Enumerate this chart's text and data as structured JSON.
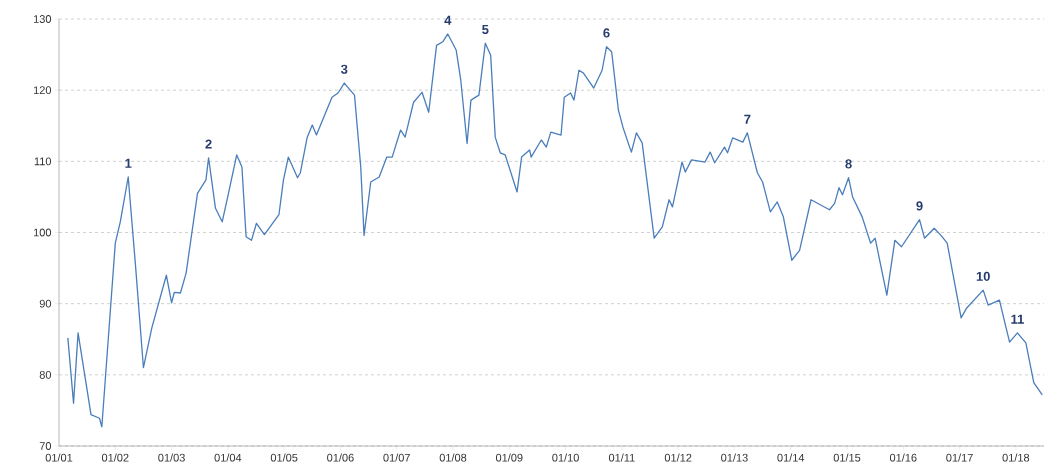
{
  "chart_data": {
    "type": "line",
    "color": "#4a7ebb",
    "line_style": "solid",
    "grid": "y",
    "xlim": [
      "2001-01-01",
      "2018-07-01"
    ],
    "ylim": [
      70,
      130
    ],
    "xticks": [
      {
        "value": "2001-01-01",
        "label": "01/01"
      },
      {
        "value": "2002-01-01",
        "label": "01/02"
      },
      {
        "value": "2003-01-01",
        "label": "01/03"
      },
      {
        "value": "2004-01-01",
        "label": "01/04"
      },
      {
        "value": "2005-01-01",
        "label": "01/05"
      },
      {
        "value": "2006-01-01",
        "label": "01/06"
      },
      {
        "value": "2007-01-01",
        "label": "01/07"
      },
      {
        "value": "2008-01-01",
        "label": "01/08"
      },
      {
        "value": "2009-01-01",
        "label": "01/09"
      },
      {
        "value": "2010-01-01",
        "label": "01/10"
      },
      {
        "value": "2011-01-01",
        "label": "01/11"
      },
      {
        "value": "2012-01-01",
        "label": "01/12"
      },
      {
        "value": "2013-01-01",
        "label": "01/13"
      },
      {
        "value": "2014-01-01",
        "label": "01/14"
      },
      {
        "value": "2015-01-01",
        "label": "01/15"
      },
      {
        "value": "2016-01-01",
        "label": "01/16"
      },
      {
        "value": "2017-01-01",
        "label": "01/17"
      },
      {
        "value": "2018-01-01",
        "label": "01/18"
      }
    ],
    "yticks": [
      70,
      80,
      90,
      100,
      110,
      120,
      130
    ],
    "x": [
      "2001-02-28",
      "2001-04-04",
      "2001-05-03",
      "2001-07-26",
      "2001-09-20",
      "2001-10-05",
      "2002-01-01",
      "2002-02-03",
      "2002-03-24",
      "2002-05-11",
      "2002-07-01",
      "2002-08-25",
      "2002-11-28",
      "2003-01-01",
      "2003-01-19",
      "2003-02-28",
      "2003-04-04",
      "2003-06-17",
      "2003-08-11",
      "2003-08-28",
      "2003-10-12",
      "2003-11-25",
      "2004-01-05",
      "2004-02-28",
      "2004-04-01",
      "2004-04-28",
      "2004-06-02",
      "2004-07-04",
      "2004-08-25",
      "2004-11-28",
      "2004-12-27",
      "2005-01-28",
      "2005-03-27",
      "2005-04-15",
      "2005-05-28",
      "2005-07-01",
      "2005-07-28",
      "2005-11-07",
      "2005-12-16",
      "2006-01-26",
      "2006-04-01",
      "2006-05-11",
      "2006-06-02",
      "2006-07-15",
      "2006-09-09",
      "2006-10-28",
      "2006-12-02",
      "2007-01-26",
      "2007-02-25",
      "2007-04-19",
      "2007-06-13",
      "2007-07-26",
      "2007-09-16",
      "2007-10-26",
      "2007-11-28",
      "2008-01-22",
      "2008-02-21",
      "2008-04-01",
      "2008-04-26",
      "2008-06-17",
      "2008-07-28",
      "2008-09-02",
      "2008-10-01",
      "2008-11-03",
      "2008-12-05",
      "2009-02-21",
      "2009-03-20",
      "2009-05-11",
      "2009-05-21",
      "2009-07-26",
      "2009-08-28",
      "2009-09-27",
      "2009-12-02",
      "2009-12-23",
      "2010-02-03",
      "2010-02-25",
      "2010-03-27",
      "2010-04-26",
      "2010-07-01",
      "2010-08-25",
      "2010-09-23",
      "2010-10-26",
      "2010-12-09",
      "2011-01-08",
      "2011-02-21",
      "2011-03-02",
      "2011-04-04",
      "2011-05-11",
      "2011-07-28",
      "2011-09-20",
      "2011-11-03",
      "2011-11-25",
      "2012-01-26",
      "2012-02-17",
      "2012-03-27",
      "2012-06-23",
      "2012-07-26",
      "2012-08-25",
      "2012-10-28",
      "2012-11-17",
      "2012-12-20",
      "2013-02-25",
      "2013-03-24",
      "2013-05-28",
      "2013-07-01",
      "2013-08-21",
      "2013-10-05",
      "2013-11-14",
      "2014-01-08",
      "2014-02-28",
      "2014-05-11",
      "2014-09-09",
      "2014-10-12",
      "2014-11-10",
      "2014-12-02",
      "2015-01-11",
      "2015-02-07",
      "2015-04-08",
      "2015-06-02",
      "2015-07-01",
      "2015-09-16",
      "2015-11-07",
      "2015-12-20",
      "2016-04-15",
      "2016-05-17",
      "2016-07-19",
      "2016-09-02",
      "2016-10-12",
      "2017-01-11",
      "2017-02-17",
      "2017-06-02",
      "2017-07-04",
      "2017-09-16",
      "2017-11-21",
      "2018-01-11",
      "2018-03-05",
      "2018-04-26",
      "2018-06-20"
    ],
    "values": [
      85.2,
      76.0,
      85.9,
      74.4,
      73.9,
      72.7,
      98.5,
      101.5,
      107.8,
      95.2,
      81.0,
      86.6,
      94.0,
      90.1,
      91.6,
      91.5,
      94.3,
      105.5,
      107.4,
      110.5,
      103.4,
      101.5,
      105.5,
      110.9,
      109.2,
      99.4,
      98.9,
      101.3,
      99.7,
      102.5,
      107.4,
      110.6,
      107.7,
      108.4,
      113.3,
      115.1,
      113.7,
      119.0,
      119.6,
      121.0,
      119.3,
      109.2,
      99.6,
      107.1,
      107.8,
      110.6,
      110.6,
      114.4,
      113.4,
      118.3,
      119.7,
      116.9,
      126.3,
      126.8,
      127.9,
      125.6,
      121.4,
      112.5,
      118.6,
      119.3,
      126.6,
      124.9,
      113.4,
      111.2,
      110.9,
      105.7,
      110.6,
      111.6,
      110.6,
      113.0,
      112.0,
      114.1,
      113.7,
      119.0,
      119.6,
      118.6,
      122.8,
      122.4,
      120.3,
      122.8,
      126.1,
      125.4,
      117.2,
      114.8,
      112.0,
      111.3,
      114.0,
      112.6,
      99.2,
      100.8,
      104.6,
      103.6,
      109.9,
      108.5,
      110.2,
      109.9,
      111.3,
      109.8,
      112.0,
      111.2,
      113.3,
      112.7,
      114.0,
      108.4,
      107.1,
      102.9,
      104.3,
      102.2,
      96.1,
      97.5,
      104.6,
      103.2,
      104.1,
      106.3,
      105.3,
      107.7,
      105.0,
      102.2,
      98.5,
      99.2,
      91.2,
      98.9,
      98.0,
      101.8,
      99.2,
      100.6,
      99.6,
      98.5,
      88.0,
      89.4,
      91.9,
      89.8,
      90.5,
      84.6,
      85.9,
      84.5,
      78.9,
      77.2
    ],
    "annotations": [
      {
        "text": "1",
        "x": "2002-03-24",
        "y": 107.8
      },
      {
        "text": "2",
        "x": "2003-08-28",
        "y": 110.5
      },
      {
        "text": "3",
        "x": "2006-01-26",
        "y": 121.0
      },
      {
        "text": "4",
        "x": "2007-11-28",
        "y": 127.9
      },
      {
        "text": "5",
        "x": "2008-07-28",
        "y": 126.6
      },
      {
        "text": "6",
        "x": "2010-09-23",
        "y": 126.1
      },
      {
        "text": "7",
        "x": "2013-03-24",
        "y": 114.0
      },
      {
        "text": "8",
        "x": "2015-01-11",
        "y": 107.7
      },
      {
        "text": "9",
        "x": "2016-04-15",
        "y": 101.8
      },
      {
        "text": "10",
        "x": "2017-06-02",
        "y": 91.9
      },
      {
        "text": "11",
        "x": "2018-01-11",
        "y": 85.9
      }
    ]
  }
}
